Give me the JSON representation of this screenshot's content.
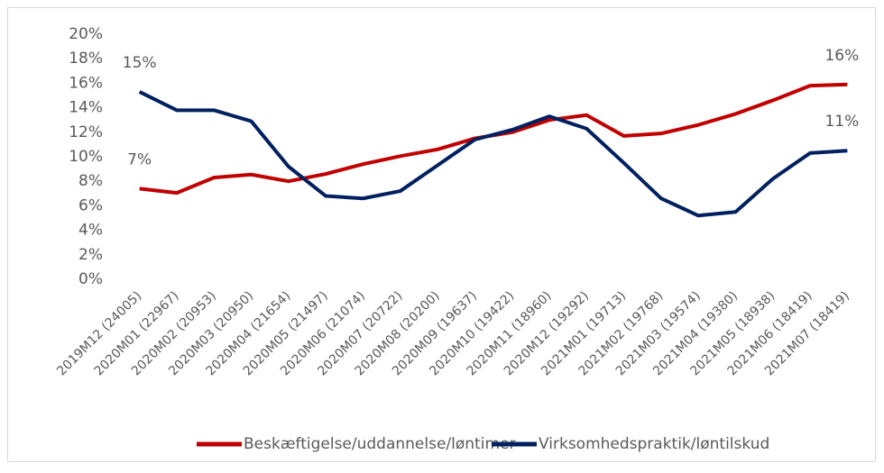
{
  "chart_data": {
    "type": "line",
    "categories": [
      "2019M12 (24005)",
      "2020M01 (22967)",
      "2020M02 (20953)",
      "2020M03 (20950)",
      "2020M04 (21654)",
      "2020M05 (21497)",
      "2020M06 (21074)",
      "2020M07 (20722)",
      "2020M08 (20200)",
      "2020M09 (19637)",
      "2020M10 (19422)",
      "2020M11 (18960)",
      "2020M12 (19292)",
      "2021M01 (19713)",
      "2021M02 (19768)",
      "2021M03 (19574)",
      "2021M04 (19380)",
      "2021M05 (18938)",
      "2021M06 (18419)",
      "2021M07 (18419)"
    ],
    "series": [
      {
        "name": "Beskæftigelse/uddannelse/løntimer",
        "color": "#c00000",
        "values": [
          7.4,
          7.05,
          8.3,
          8.55,
          8.0,
          8.6,
          9.4,
          10.05,
          10.6,
          11.5,
          12.0,
          13.0,
          13.4,
          11.7,
          11.9,
          12.6,
          13.5,
          14.6,
          15.8,
          15.9
        ],
        "value_labels": [
          "7%",
          null,
          null,
          null,
          null,
          null,
          null,
          null,
          null,
          null,
          null,
          null,
          null,
          null,
          null,
          null,
          null,
          null,
          null,
          "16%"
        ]
      },
      {
        "name": "Virksomhedspraktik/løntilskud",
        "color": "#002060",
        "values": [
          15.3,
          13.8,
          13.8,
          12.9,
          9.2,
          6.8,
          6.6,
          7.2,
          9.3,
          11.4,
          12.2,
          13.3,
          12.3,
          9.5,
          6.6,
          5.2,
          5.5,
          8.2,
          10.3,
          10.5
        ],
        "value_labels": [
          "15%",
          null,
          null,
          null,
          null,
          null,
          null,
          null,
          null,
          null,
          null,
          null,
          null,
          null,
          null,
          null,
          null,
          null,
          null,
          "11%"
        ]
      }
    ],
    "ylim": [
      0,
      20
    ],
    "yticks": [
      {
        "value": 0,
        "label": "0%"
      },
      {
        "value": 2,
        "label": "2%"
      },
      {
        "value": 4,
        "label": "4%"
      },
      {
        "value": 6,
        "label": "6%"
      },
      {
        "value": 8,
        "label": "8%"
      },
      {
        "value": 10,
        "label": "10%"
      },
      {
        "value": 12,
        "label": "12%"
      },
      {
        "value": 14,
        "label": "14%"
      },
      {
        "value": 16,
        "label": "16%"
      },
      {
        "value": 18,
        "label": "18%"
      },
      {
        "value": 20,
        "label": "20%"
      }
    ],
    "grid": false,
    "legend": "bottom"
  }
}
